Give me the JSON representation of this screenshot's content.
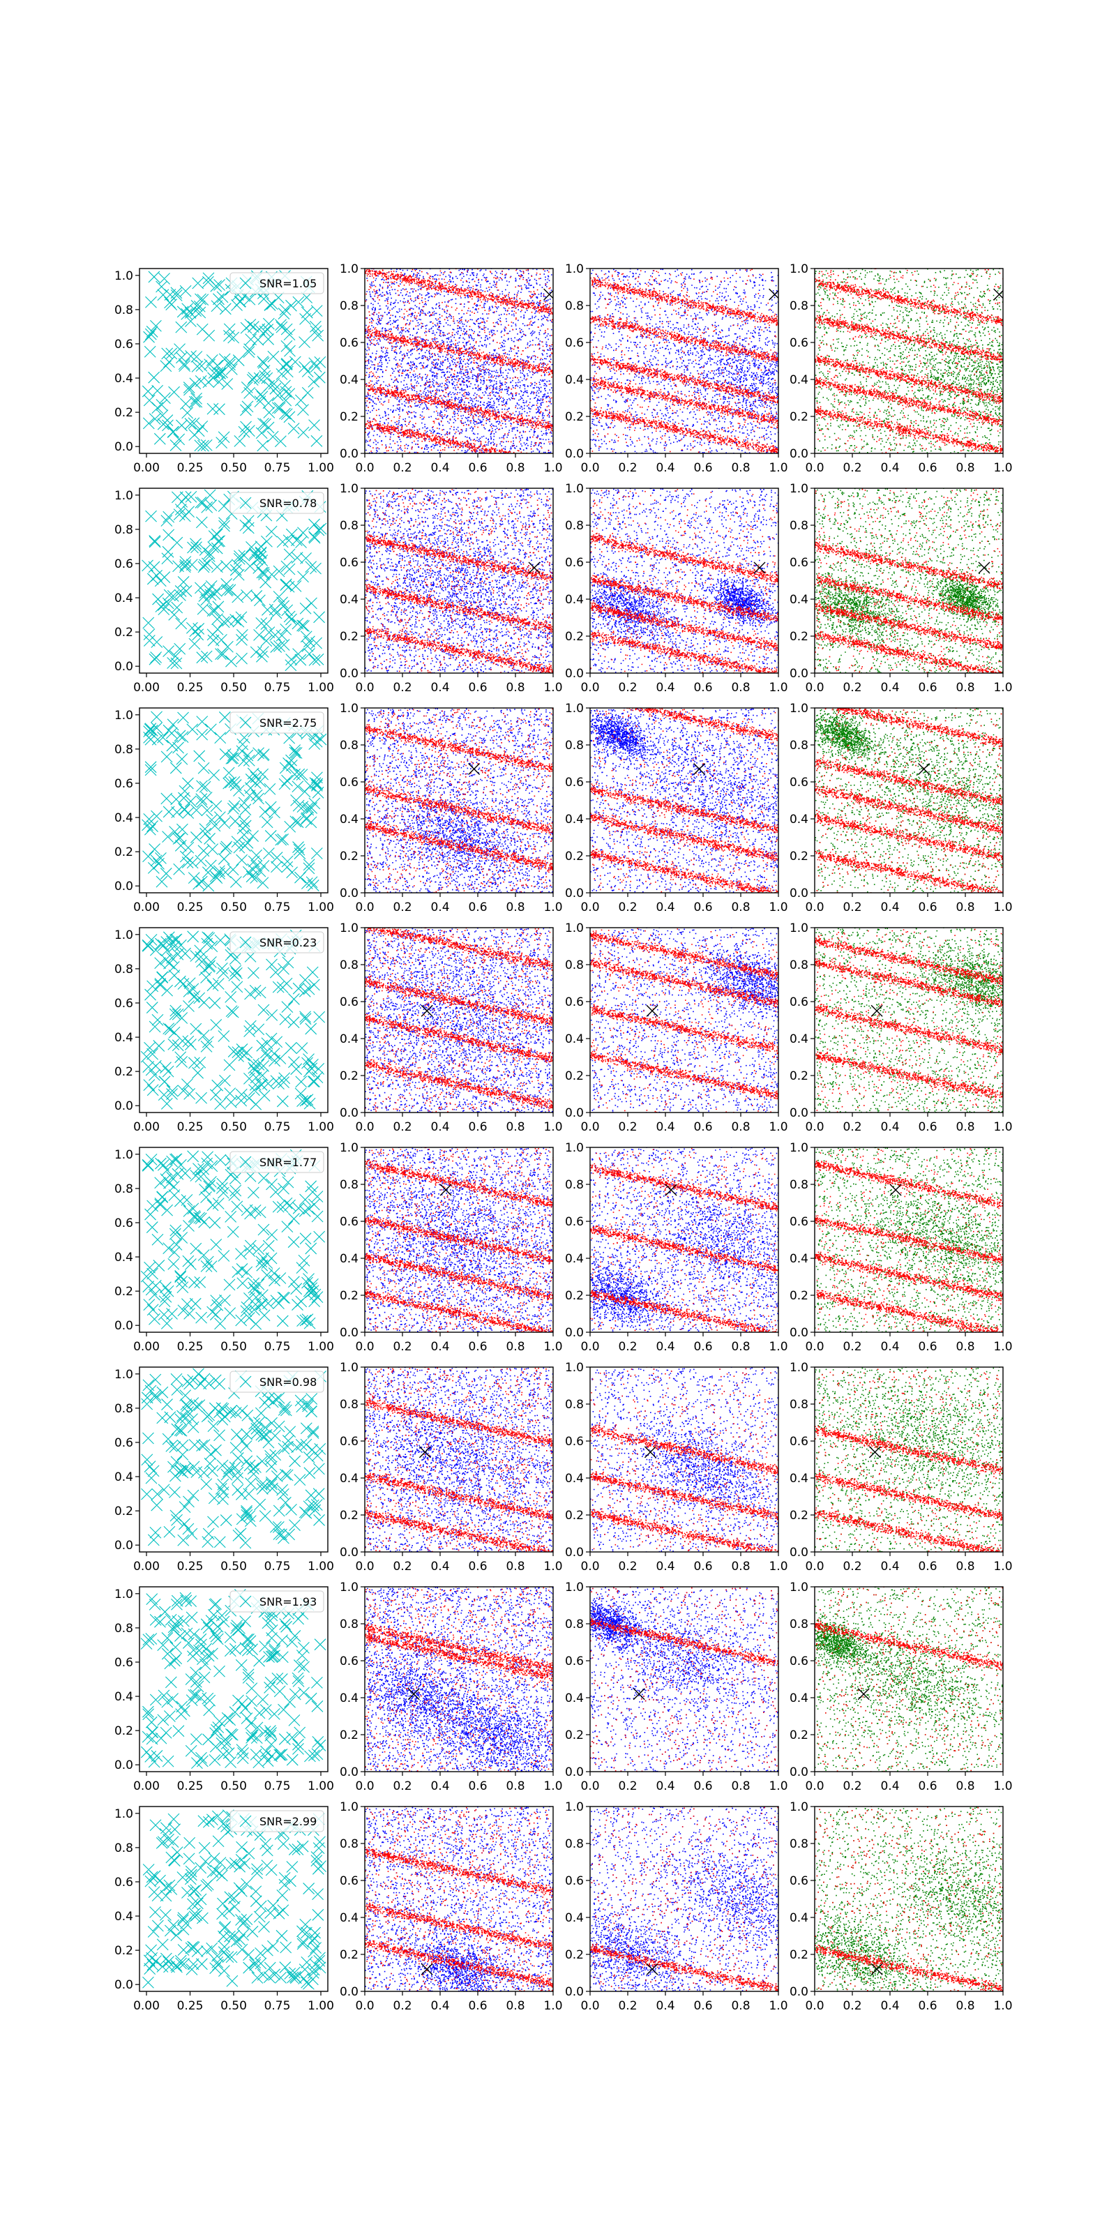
{
  "figure": {
    "rows": 8,
    "cols": 4,
    "colors": {
      "marker": "#00bfbf",
      "red": "#ff0000",
      "blue": "#0000ff",
      "green": "#008000",
      "target": "#000000"
    }
  },
  "chart_data": [
    {
      "row": 0,
      "type": "scatter",
      "legend": "SNR=1.05",
      "target": [
        0.98,
        0.86
      ],
      "bands": {
        "col1": [
          0.88,
          0.55,
          0.25,
          0.05
        ],
        "col2": [
          0.82,
          0.62,
          0.4,
          0.28,
          0.12
        ],
        "col3": [
          0.82,
          0.62,
          0.4,
          0.28,
          0.12
        ]
      },
      "blue_clusters": {
        "col1": [
          [
            0.5,
            0.4,
            0.3
          ]
        ],
        "col2": [
          [
            0.85,
            0.4,
            0.25
          ]
        ],
        "col3": [
          [
            0.85,
            0.4,
            0.25
          ]
        ]
      }
    },
    {
      "row": 1,
      "type": "scatter",
      "legend": "SNR=0.78",
      "target": [
        0.9,
        0.57
      ],
      "bands": {
        "col1": [
          0.62,
          0.35,
          0.12
        ],
        "col2": [
          0.62,
          0.4,
          0.25,
          0.1
        ],
        "col3": [
          0.58,
          0.4,
          0.25,
          0.1
        ]
      },
      "blue_clusters": {
        "col1": [
          [
            0.5,
            0.5,
            0.3
          ]
        ],
        "col2": [
          [
            0.2,
            0.35,
            0.15
          ],
          [
            0.8,
            0.38,
            0.1
          ]
        ],
        "col3": [
          [
            0.2,
            0.35,
            0.15
          ],
          [
            0.8,
            0.4,
            0.1
          ]
        ]
      }
    },
    {
      "row": 2,
      "type": "scatter",
      "legend": "SNR=2.75",
      "target": [
        0.58,
        0.67
      ],
      "bands": {
        "col1": [
          0.78,
          0.45,
          0.25
        ],
        "col2": [
          0.95,
          0.45,
          0.3,
          0.1
        ],
        "col3": [
          0.92,
          0.6,
          0.45,
          0.3,
          0.1
        ]
      },
      "blue_clusters": {
        "col1": [
          [
            0.5,
            0.3,
            0.2
          ]
        ],
        "col2": [
          [
            0.15,
            0.85,
            0.1
          ],
          [
            0.7,
            0.55,
            0.3
          ]
        ],
        "col3": [
          [
            0.15,
            0.85,
            0.1
          ],
          [
            0.7,
            0.55,
            0.3
          ]
        ]
      }
    },
    {
      "row": 3,
      "type": "scatter",
      "legend": "SNR=0.23",
      "target": [
        0.33,
        0.55
      ],
      "bands": {
        "col1": [
          0.9,
          0.6,
          0.4,
          0.15
        ],
        "col2": [
          0.85,
          0.7,
          0.45,
          0.2
        ],
        "col3": [
          0.82,
          0.7,
          0.45,
          0.2
        ]
      },
      "blue_clusters": {
        "col1": [
          [
            0.5,
            0.5,
            0.35
          ]
        ],
        "col2": [
          [
            0.85,
            0.7,
            0.15
          ]
        ],
        "col3": [
          [
            0.85,
            0.7,
            0.15
          ]
        ]
      }
    },
    {
      "row": 4,
      "type": "scatter",
      "legend": "SNR=1.77",
      "target": [
        0.43,
        0.77
      ],
      "bands": {
        "col1": [
          0.8,
          0.5,
          0.3,
          0.1
        ],
        "col2": [
          0.78,
          0.45,
          0.1
        ],
        "col3": [
          0.8,
          0.5,
          0.3,
          0.1
        ]
      },
      "blue_clusters": {
        "col1": [
          [
            0.5,
            0.5,
            0.3
          ]
        ],
        "col2": [
          [
            0.15,
            0.2,
            0.15
          ],
          [
            0.7,
            0.5,
            0.25
          ]
        ],
        "col3": [
          [
            0.7,
            0.5,
            0.25
          ]
        ]
      }
    },
    {
      "row": 5,
      "type": "scatter",
      "legend": "SNR=0.98",
      "target": [
        0.32,
        0.54
      ],
      "bands": {
        "col1": [
          0.7,
          0.3,
          0.1
        ],
        "col2": [
          0.55,
          0.3,
          0.1
        ],
        "col3": [
          0.55,
          0.3,
          0.1
        ]
      },
      "blue_clusters": {
        "col1": [
          [
            0.5,
            0.5,
            0.3
          ]
        ],
        "col2": [
          [
            0.6,
            0.45,
            0.2
          ]
        ],
        "col3": [
          [
            0.6,
            0.6,
            0.3
          ]
        ]
      }
    },
    {
      "row": 6,
      "type": "scatter",
      "legend": "SNR=1.93",
      "target": [
        0.26,
        0.42
      ],
      "bands": {
        "col1": [
          0.67,
          0.62
        ],
        "col2": [
          0.7
        ],
        "col3": [
          0.68
        ]
      },
      "blue_clusters": {
        "col1": [
          [
            0.3,
            0.4,
            0.2
          ],
          [
            0.7,
            0.2,
            0.2
          ]
        ],
        "col2": [
          [
            0.1,
            0.8,
            0.1
          ],
          [
            0.5,
            0.6,
            0.25
          ]
        ],
        "col3": [
          [
            0.1,
            0.7,
            0.1
          ],
          [
            0.5,
            0.5,
            0.25
          ]
        ]
      }
    },
    {
      "row": 7,
      "type": "scatter",
      "legend": "SNR=2.99",
      "target": [
        0.33,
        0.12
      ],
      "bands": {
        "col1": [
          0.65,
          0.35,
          0.15
        ],
        "col2": [
          0.12
        ],
        "col3": [
          0.12
        ]
      },
      "blue_clusters": {
        "col1": [
          [
            0.5,
            0.12,
            0.15
          ]
        ],
        "col2": [
          [
            0.2,
            0.2,
            0.2
          ],
          [
            0.8,
            0.5,
            0.25
          ]
        ],
        "col3": [
          [
            0.2,
            0.2,
            0.2
          ],
          [
            0.8,
            0.5,
            0.25
          ]
        ]
      }
    }
  ],
  "axes": {
    "col0_ticks_x": [
      "0.00",
      "0.25",
      "0.50",
      "0.75",
      "1.00"
    ],
    "col0_ticks_y": [
      "0.0",
      "0.2",
      "0.4",
      "0.6",
      "0.8",
      "1.0"
    ],
    "other_ticks_x": [
      "0.0",
      "0.2",
      "0.4",
      "0.6",
      "0.8",
      "1.0"
    ],
    "other_ticks_y": [
      "0.0",
      "0.2",
      "0.4",
      "0.6",
      "0.8",
      "1.0"
    ]
  }
}
